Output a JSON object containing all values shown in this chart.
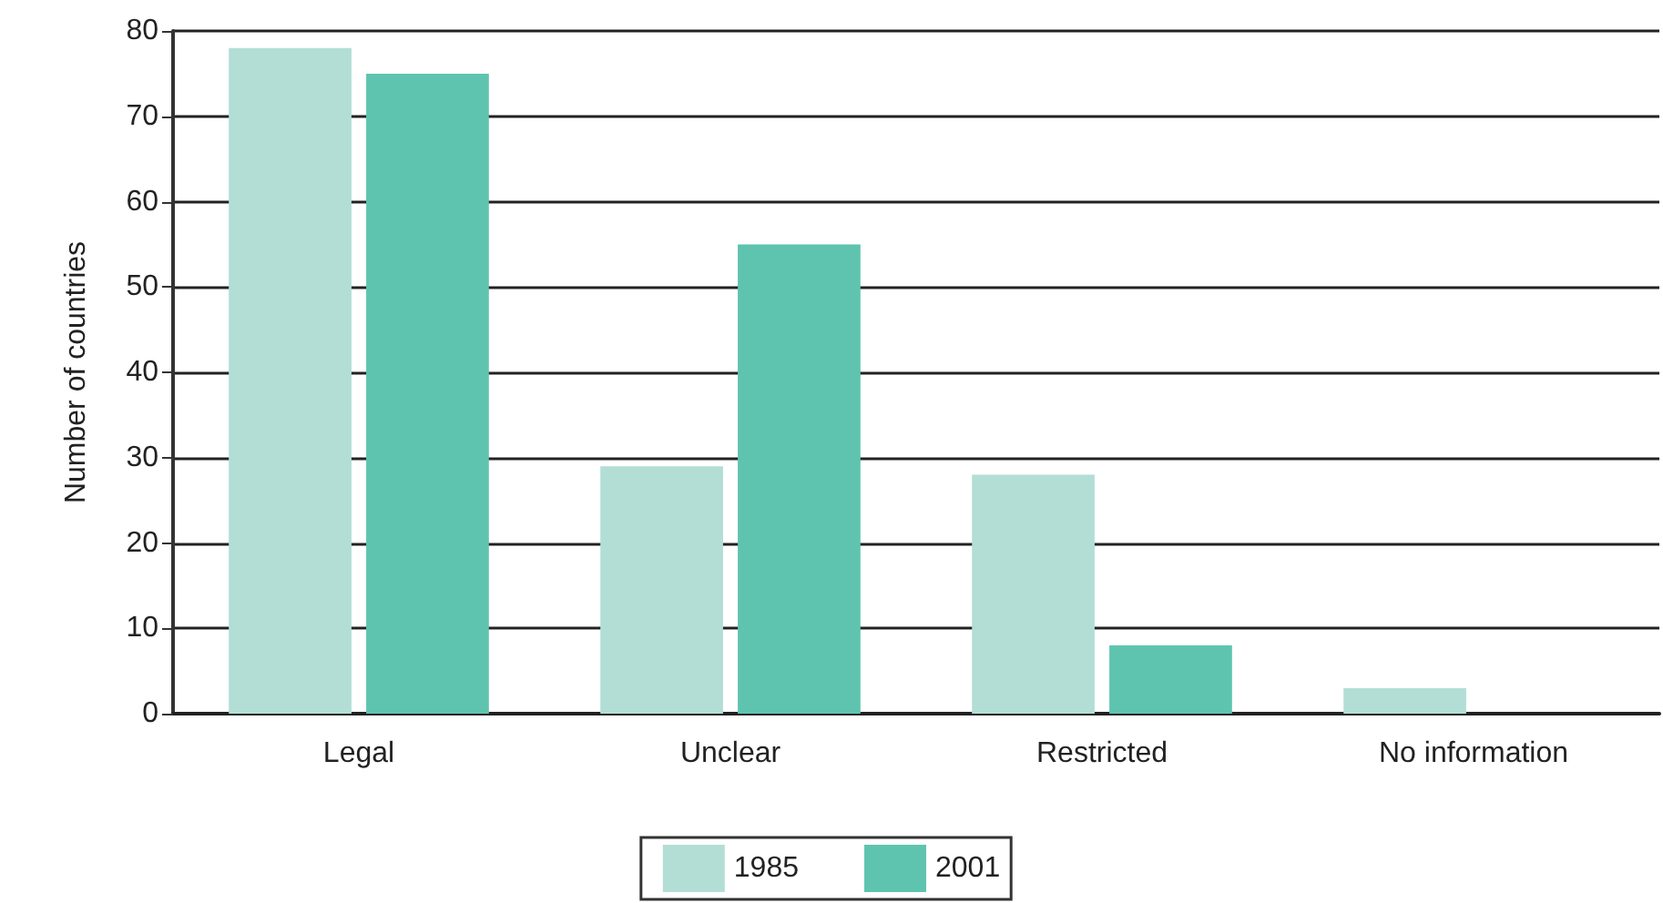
{
  "chart_data": {
    "type": "bar",
    "ylabel": "Number of countries",
    "categories": [
      "Legal",
      "Unclear",
      "Restricted",
      "No information"
    ],
    "series": [
      {
        "name": "1985",
        "color": "#b3ded5",
        "values": [
          78,
          29,
          28,
          3
        ]
      },
      {
        "name": "2001",
        "color": "#5ec4af",
        "values": [
          75,
          55,
          8,
          0
        ]
      }
    ],
    "ylim": [
      0,
      80
    ],
    "yticks": [
      0,
      10,
      20,
      30,
      40,
      50,
      60,
      70,
      80
    ],
    "grid": "y",
    "legend": "bottom"
  }
}
